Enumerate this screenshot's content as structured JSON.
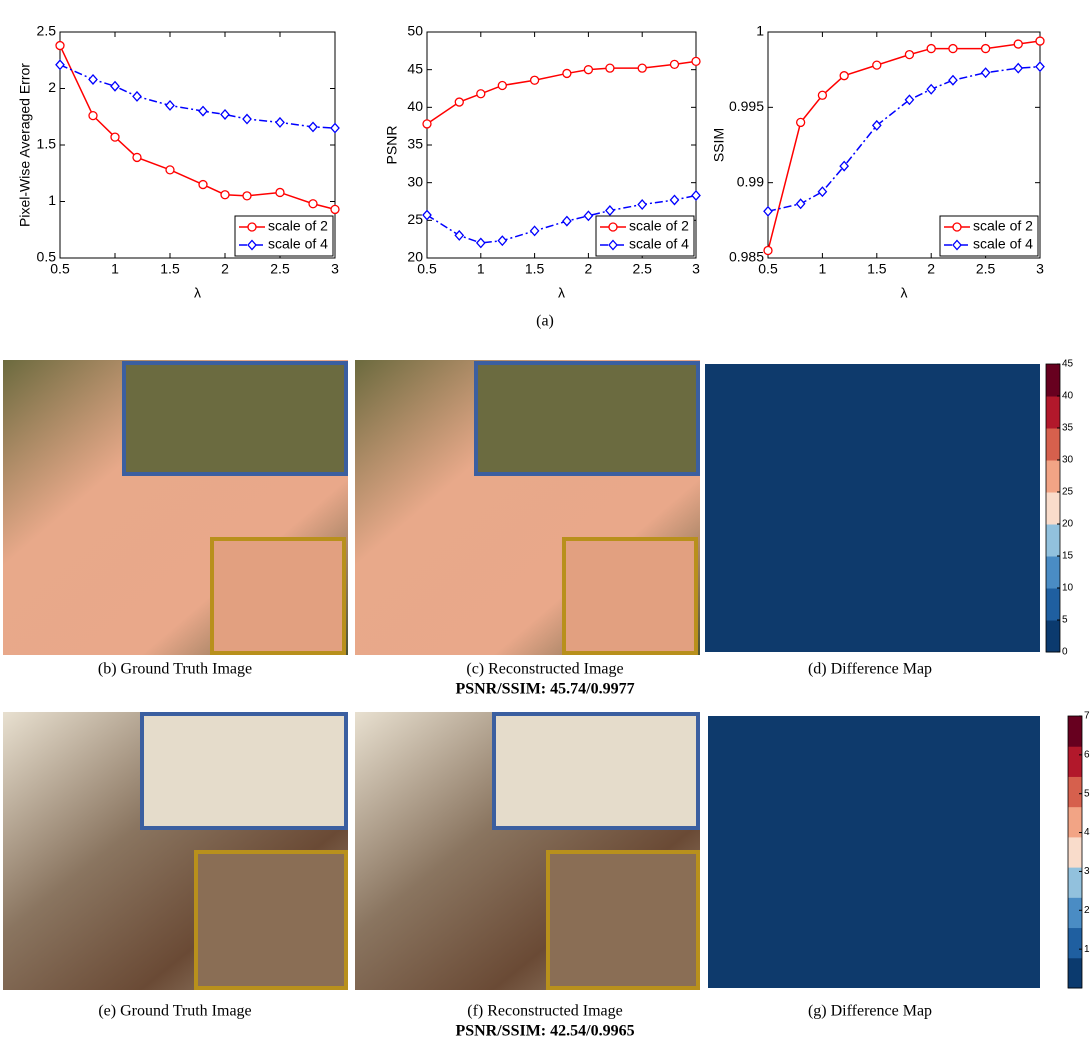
{
  "chart_data": [
    {
      "type": "line",
      "ylabel": "Pixel-Wise Averaged Error",
      "xlabel": "λ",
      "x": [
        0.5,
        0.8,
        1,
        1.2,
        1.5,
        1.8,
        2,
        2.2,
        2.5,
        2.8,
        3
      ],
      "xlim": [
        0.5,
        3
      ],
      "xticks": [
        0.5,
        1,
        1.5,
        2,
        2.5,
        3
      ],
      "ylim": [
        0.5,
        2.5
      ],
      "yticks": [
        0.5,
        1,
        1.5,
        2,
        2.5
      ],
      "legend": "lower right",
      "series": [
        {
          "name": "scale of 2",
          "color": "#ff0000",
          "marker": "circle",
          "line_style": "solid",
          "values": [
            2.38,
            1.76,
            1.57,
            1.39,
            1.28,
            1.15,
            1.06,
            1.05,
            1.08,
            0.98,
            0.93
          ]
        },
        {
          "name": "scale of 4",
          "color": "#0000ff",
          "marker": "diamond",
          "line_style": "dashdot",
          "values": [
            2.21,
            2.08,
            2.02,
            1.93,
            1.85,
            1.8,
            1.77,
            1.73,
            1.7,
            1.66,
            1.65
          ]
        }
      ]
    },
    {
      "type": "line",
      "ylabel": "PSNR",
      "xlabel": "λ",
      "x": [
        0.5,
        0.8,
        1,
        1.2,
        1.5,
        1.8,
        2,
        2.2,
        2.5,
        2.8,
        3
      ],
      "xlim": [
        0.5,
        3
      ],
      "xticks": [
        0.5,
        1,
        1.5,
        2,
        2.5,
        3
      ],
      "ylim": [
        20,
        50
      ],
      "yticks": [
        20,
        25,
        30,
        35,
        40,
        45,
        50
      ],
      "legend": "lower right",
      "series": [
        {
          "name": "scale of 2",
          "color": "#ff0000",
          "marker": "circle",
          "line_style": "solid",
          "values": [
            37.8,
            40.7,
            41.8,
            42.9,
            43.6,
            44.5,
            45.0,
            45.2,
            45.2,
            45.7,
            46.1
          ]
        },
        {
          "name": "scale of 4",
          "color": "#0000ff",
          "marker": "diamond",
          "line_style": "dashdot",
          "values": [
            25.7,
            23.0,
            22.0,
            22.3,
            23.6,
            24.9,
            25.6,
            26.3,
            27.1,
            27.7,
            28.3
          ]
        }
      ]
    },
    {
      "type": "line",
      "ylabel": "SSIM",
      "xlabel": "λ",
      "x": [
        0.5,
        0.8,
        1,
        1.2,
        1.5,
        1.8,
        2,
        2.2,
        2.5,
        2.8,
        3
      ],
      "xlim": [
        0.5,
        3
      ],
      "xticks": [
        0.5,
        1,
        1.5,
        2,
        2.5,
        3
      ],
      "ylim": [
        0.985,
        1
      ],
      "yticks": [
        0.985,
        0.99,
        0.995,
        1
      ],
      "legend": "lower right",
      "series": [
        {
          "name": "scale of 2",
          "color": "#ff0000",
          "marker": "circle",
          "line_style": "solid",
          "values": [
            0.9855,
            0.994,
            0.9958,
            0.9971,
            0.9978,
            0.9985,
            0.9989,
            0.9989,
            0.9989,
            0.9992,
            0.9994
          ]
        },
        {
          "name": "scale of 4",
          "color": "#0000ff",
          "marker": "diamond",
          "line_style": "dashdot",
          "values": [
            0.9881,
            0.9886,
            0.9894,
            0.9911,
            0.9938,
            0.9955,
            0.9962,
            0.9968,
            0.9973,
            0.9976,
            0.9977
          ]
        }
      ]
    }
  ],
  "panel_label": "(a)",
  "rows": [
    {
      "captions": [
        "(b) Ground Truth Image",
        "(c) Reconstructed Image",
        "(d) Difference Map"
      ],
      "metrics": "PSNR/SSIM: 45.74/0.9977",
      "colorbar": {
        "clim": [
          0,
          45
        ],
        "ticks": [
          0,
          5,
          10,
          15,
          20,
          25,
          30,
          35,
          40,
          45
        ]
      }
    },
    {
      "captions": [
        "(e) Ground Truth Image",
        "(f) Reconstructed Image",
        "(g) Difference Map"
      ],
      "metrics": "PSNR/SSIM: 42.54/0.9965",
      "colorbar": {
        "clim": [
          0,
          7
        ],
        "ticks": [
          1,
          2,
          3,
          4,
          5,
          6,
          7
        ]
      }
    }
  ]
}
